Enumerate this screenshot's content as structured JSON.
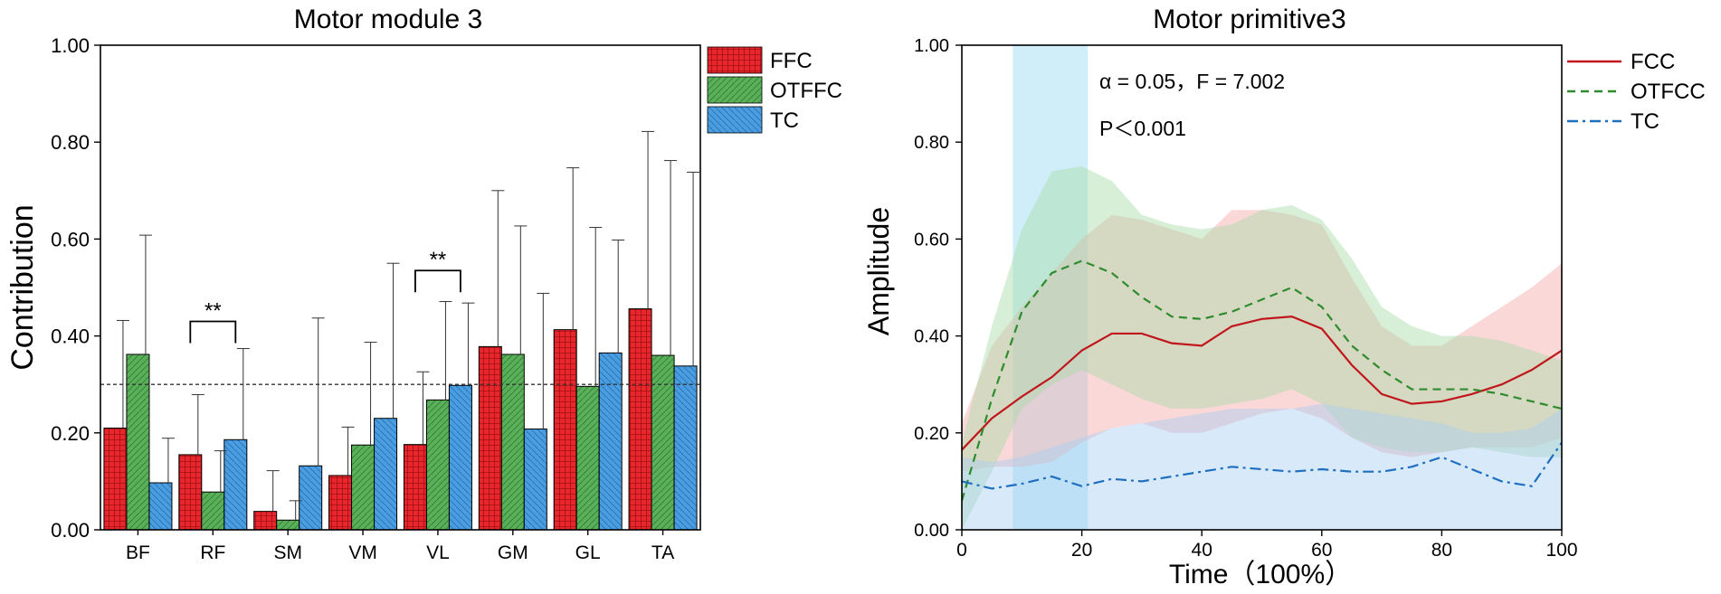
{
  "colors": {
    "ffc": "#e8262b",
    "otffc": "#5ab05a",
    "tc": "#4a9de0",
    "fcc_line": "#c0161c",
    "otfcc_line": "#2e8b2e",
    "tc_line": "#1f6fc0",
    "highlight": "#bfe8f7"
  },
  "chart_data": [
    {
      "type": "bar",
      "title": "Motor module 3",
      "xlabel": "",
      "ylabel": "Contribution",
      "ylim": [
        0,
        1
      ],
      "yticks": [
        "0.00",
        "0.20",
        "0.40",
        "0.60",
        "0.80",
        "1.00"
      ],
      "categories": [
        "BF",
        "RF",
        "SM",
        "VM",
        "VL",
        "GM",
        "GL",
        "TA"
      ],
      "series": [
        {
          "name": "FFC",
          "color_key": "ffc",
          "values": [
            0.21,
            0.155,
            0.038,
            0.112,
            0.176,
            0.378,
            0.413,
            0.456
          ],
          "errors": [
            0.222,
            0.124,
            0.084,
            0.1,
            0.15,
            0.322,
            0.334,
            0.366
          ]
        },
        {
          "name": "OTFFC",
          "color_key": "otffc",
          "values": [
            0.362,
            0.078,
            0.02,
            0.175,
            0.268,
            0.362,
            0.296,
            0.36
          ],
          "errors": [
            0.246,
            0.085,
            0.04,
            0.212,
            0.203,
            0.265,
            0.328,
            0.402
          ]
        },
        {
          "name": "TC",
          "color_key": "tc",
          "values": [
            0.097,
            0.186,
            0.132,
            0.23,
            0.298,
            0.208,
            0.365,
            0.338
          ],
          "errors": [
            0.092,
            0.188,
            0.305,
            0.32,
            0.17,
            0.28,
            0.233,
            0.4
          ]
        }
      ],
      "reference_line": 0.3,
      "annotations": [
        {
          "text": "**",
          "category": "RF",
          "from_series": 0,
          "to_series": 2,
          "y": 0.43
        },
        {
          "text": "**",
          "category": "VL",
          "from_series": 0,
          "to_series": 2,
          "y": 0.535
        }
      ]
    },
    {
      "type": "line",
      "title": "Motor primitive3",
      "xlabel": "Time（100%）",
      "ylabel": "Amplitude",
      "xlim": [
        0,
        100
      ],
      "ylim": [
        0,
        1
      ],
      "xticks": [
        "0",
        "20",
        "40",
        "60",
        "80",
        "100"
      ],
      "yticks": [
        "0.00",
        "0.20",
        "0.40",
        "0.60",
        "0.80",
        "1.00"
      ],
      "highlight_x": [
        8.5,
        21
      ],
      "stats": [
        "α = 0.05，F = 7.002",
        "P＜0.001"
      ],
      "x": [
        0,
        5,
        10,
        15,
        20,
        25,
        30,
        35,
        40,
        45,
        50,
        55,
        60,
        65,
        70,
        75,
        80,
        85,
        90,
        95,
        100
      ],
      "series": [
        {
          "name": "FCC",
          "color_key": "fcc_line",
          "dash": "solid",
          "values": [
            0.165,
            0.23,
            0.275,
            0.315,
            0.37,
            0.405,
            0.405,
            0.385,
            0.38,
            0.42,
            0.435,
            0.44,
            0.415,
            0.34,
            0.28,
            0.26,
            0.265,
            0.28,
            0.3,
            0.33,
            0.37
          ],
          "band_upper": [
            0.22,
            0.38,
            0.46,
            0.53,
            0.6,
            0.65,
            0.64,
            0.62,
            0.6,
            0.66,
            0.66,
            0.65,
            0.63,
            0.52,
            0.42,
            0.38,
            0.38,
            0.42,
            0.46,
            0.5,
            0.55
          ],
          "band_lower": [
            0.12,
            0.13,
            0.13,
            0.14,
            0.18,
            0.21,
            0.22,
            0.2,
            0.2,
            0.22,
            0.24,
            0.25,
            0.23,
            0.19,
            0.16,
            0.15,
            0.16,
            0.17,
            0.17,
            0.17,
            0.19
          ]
        },
        {
          "name": "OTFCC",
          "color_key": "otfcc_line",
          "dash": "dashed",
          "values": [
            0.06,
            0.27,
            0.45,
            0.53,
            0.555,
            0.53,
            0.48,
            0.44,
            0.435,
            0.45,
            0.475,
            0.5,
            0.46,
            0.38,
            0.33,
            0.29,
            0.29,
            0.29,
            0.28,
            0.265,
            0.25
          ],
          "band_upper": [
            0.18,
            0.42,
            0.62,
            0.74,
            0.75,
            0.72,
            0.65,
            0.63,
            0.62,
            0.63,
            0.66,
            0.67,
            0.64,
            0.56,
            0.46,
            0.42,
            0.4,
            0.4,
            0.39,
            0.37,
            0.35
          ],
          "band_lower": [
            0.0,
            0.12,
            0.25,
            0.3,
            0.33,
            0.3,
            0.27,
            0.25,
            0.25,
            0.26,
            0.27,
            0.29,
            0.26,
            0.19,
            0.17,
            0.16,
            0.16,
            0.17,
            0.16,
            0.15,
            0.15
          ]
        },
        {
          "name": "TC",
          "color_key": "tc_line",
          "dash": "dashdot",
          "values": [
            0.1,
            0.085,
            0.095,
            0.11,
            0.09,
            0.105,
            0.1,
            0.11,
            0.12,
            0.13,
            0.125,
            0.12,
            0.125,
            0.12,
            0.12,
            0.13,
            0.15,
            0.125,
            0.1,
            0.09,
            0.18
          ],
          "band_upper": [
            0.15,
            0.14,
            0.15,
            0.17,
            0.19,
            0.21,
            0.22,
            0.23,
            0.24,
            0.25,
            0.25,
            0.25,
            0.26,
            0.25,
            0.24,
            0.23,
            0.22,
            0.2,
            0.2,
            0.21,
            0.25
          ],
          "band_lower": [
            0.0,
            0.0,
            0.0,
            0.0,
            0.0,
            0.0,
            0.0,
            0.0,
            0.0,
            0.0,
            0.0,
            0.0,
            0.0,
            0.0,
            0.0,
            0.0,
            0.0,
            0.0,
            0.0,
            0.0,
            0.0
          ]
        }
      ]
    }
  ]
}
